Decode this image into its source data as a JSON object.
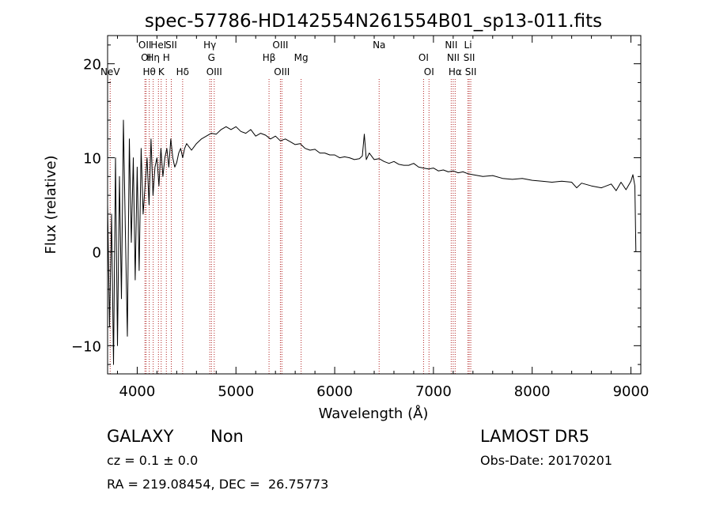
{
  "chart_data": {
    "type": "line",
    "title": "spec-57786-HD142554N261554B01_sp13-011.fits",
    "xlabel": "Wavelength (Å)",
    "ylabel": "Flux (relative)",
    "xlim": [
      3700,
      9100
    ],
    "ylim": [
      -13,
      23
    ],
    "xticks": [
      4000,
      5000,
      6000,
      7000,
      8000,
      9000
    ],
    "yticks": [
      -10,
      0,
      10,
      20
    ],
    "line_color": "#000000",
    "marker_color": "#b22222",
    "series": [
      {
        "x": [
          3700,
          3720,
          3740,
          3760,
          3780,
          3800,
          3820,
          3840,
          3860,
          3880,
          3900,
          3920,
          3940,
          3960,
          3980,
          4000,
          4020,
          4040,
          4060,
          4080,
          4100,
          4120,
          4140,
          4160,
          4180,
          4200,
          4220,
          4240,
          4260,
          4280,
          4300,
          4320,
          4340,
          4360,
          4380,
          4400,
          4420,
          4440,
          4460,
          4480,
          4500,
          4550,
          4600,
          4650,
          4700,
          4750,
          4800,
          4850,
          4900,
          4950,
          5000,
          5050,
          5100,
          5150,
          5200,
          5250,
          5300,
          5350,
          5400,
          5450,
          5500,
          5550,
          5600,
          5650,
          5700,
          5750,
          5800,
          5850,
          5900,
          5950,
          6000,
          6050,
          6100,
          6150,
          6200,
          6250,
          6280,
          6300,
          6320,
          6350,
          6400,
          6450,
          6500,
          6550,
          6600,
          6650,
          6700,
          6750,
          6800,
          6850,
          6900,
          6950,
          7000,
          7050,
          7100,
          7150,
          7200,
          7250,
          7300,
          7350,
          7400,
          7450,
          7500,
          7600,
          7700,
          7800,
          7900,
          8000,
          8100,
          8200,
          8300,
          8400,
          8450,
          8500,
          8600,
          8700,
          8800,
          8850,
          8900,
          8950,
          9000,
          9020,
          9040,
          9050
        ],
        "y": [
          5,
          -8,
          4,
          -12,
          10,
          -10,
          8,
          -5,
          14,
          2,
          -9,
          12,
          1,
          10,
          -3,
          9,
          -2,
          11,
          4,
          7,
          10,
          5,
          12,
          6,
          9,
          10,
          7,
          11,
          8,
          10,
          11,
          9,
          12,
          10,
          9,
          9.5,
          10.5,
          11,
          10,
          11,
          11.5,
          10.8,
          11.5,
          12,
          12.3,
          12.6,
          12.5,
          13,
          13.3,
          13,
          13.3,
          12.8,
          12.6,
          13,
          12.3,
          12.6,
          12.4,
          12,
          12.3,
          11.8,
          12,
          11.7,
          11.4,
          11.5,
          11,
          10.8,
          10.9,
          10.5,
          10.5,
          10.3,
          10.3,
          10,
          10.1,
          10,
          9.8,
          9.9,
          10.2,
          12.5,
          9.8,
          10.5,
          9.8,
          9.9,
          9.6,
          9.4,
          9.6,
          9.3,
          9.2,
          9.2,
          9.4,
          9,
          8.9,
          8.8,
          8.9,
          8.6,
          8.7,
          8.5,
          8.6,
          8.4,
          8.5,
          8.3,
          8.2,
          8.1,
          8,
          8.1,
          7.8,
          7.7,
          7.8,
          7.6,
          7.5,
          7.4,
          7.5,
          7.4,
          6.8,
          7.3,
          7,
          6.8,
          7.2,
          6.5,
          7.4,
          6.6,
          7.5,
          8.2,
          7,
          0
        ]
      }
    ],
    "lines": [
      {
        "label": "NeV",
        "x": 3726,
        "row": 3
      },
      {
        "label": "OII",
        "x": 4078,
        "row": 1
      },
      {
        "label": "OI",
        "x": 4090,
        "row": 2
      },
      {
        "label": "Hθ",
        "x": 4122,
        "row": 3
      },
      {
        "label": "Hη",
        "x": 4162,
        "row": 2
      },
      {
        "label": "HeI",
        "x": 4215,
        "row": 1
      },
      {
        "label": "K",
        "x": 4243,
        "row": 3
      },
      {
        "label": "H",
        "x": 4295,
        "row": 2
      },
      {
        "label": "SII",
        "x": 4345,
        "row": 1
      },
      {
        "label": "Hδ",
        "x": 4460,
        "row": 3
      },
      {
        "label": "Hγ",
        "x": 4735,
        "row": 1
      },
      {
        "label": "G",
        "x": 4752,
        "row": 2
      },
      {
        "label": "OIII",
        "x": 4780,
        "row": 3
      },
      {
        "label": "Hβ",
        "x": 5335,
        "row": 2
      },
      {
        "label": "OIII",
        "x": 5450,
        "row": 1
      },
      {
        "label": "OIII",
        "x": 5465,
        "row": 3
      },
      {
        "label": "Mg",
        "x": 5660,
        "row": 2
      },
      {
        "label": "Na",
        "x": 6450,
        "row": 1
      },
      {
        "label": "OI",
        "x": 6900,
        "row": 2
      },
      {
        "label": "OI",
        "x": 6955,
        "row": 3
      },
      {
        "label": "NII",
        "x": 7180,
        "row": 1
      },
      {
        "label": "NII",
        "x": 7200,
        "row": 2
      },
      {
        "label": "Hα",
        "x": 7220,
        "row": 3
      },
      {
        "label": "Li",
        "x": 7350,
        "row": 1
      },
      {
        "label": "SII",
        "x": 7362,
        "row": 2
      },
      {
        "label": "SII",
        "x": 7378,
        "row": 3
      }
    ]
  },
  "info": {
    "class": "GALAXY",
    "subclass": "Non",
    "cz": "cz = 0.1 ± 0.0",
    "coords": "RA = 219.08454, DEC =  26.75773",
    "survey": "LAMOST DR5",
    "obs_date": "Obs-Date: 20170201"
  }
}
